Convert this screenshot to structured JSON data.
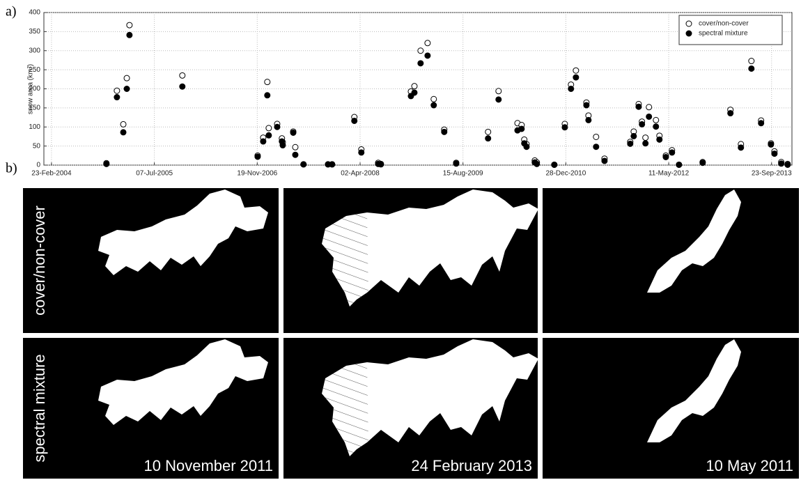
{
  "chart_data": {
    "type": "scatter",
    "ylabel": "snow area (km²)",
    "x": [
      "2004-11-16",
      "2005-01-06",
      "2005-02-06",
      "2005-02-23",
      "2005-03-08",
      "2005-11-20",
      "2006-11-21",
      "2006-12-18",
      "2007-01-07",
      "2007-01-14",
      "2007-02-24",
      "2007-03-19",
      "2007-03-23",
      "2007-05-13",
      "2007-05-23",
      "2007-07-02",
      "2007-10-29",
      "2007-11-18",
      "2008-03-05",
      "2008-04-08",
      "2008-06-29",
      "2008-07-12",
      "2008-12-05",
      "2008-12-22",
      "2009-01-21",
      "2009-02-24",
      "2009-03-26",
      "2009-05-16",
      "2009-07-13",
      "2009-12-15",
      "2010-02-04",
      "2010-05-07",
      "2010-05-27",
      "2010-06-09",
      "2010-06-20",
      "2010-07-30",
      "2010-08-09",
      "2010-11-02",
      "2010-12-23",
      "2011-01-22",
      "2011-02-15",
      "2011-04-07",
      "2011-04-17",
      "2011-05-24",
      "2011-07-04",
      "2011-11-06",
      "2011-11-23",
      "2011-12-17",
      "2012-01-02",
      "2012-01-19",
      "2012-02-05",
      "2012-03-10",
      "2012-03-27",
      "2012-04-27",
      "2012-05-27",
      "2012-06-30",
      "2012-10-23",
      "2013-03-07",
      "2013-04-27",
      "2013-06-17",
      "2013-08-03",
      "2013-09-20",
      "2013-10-07",
      "2013-11-09",
      "2013-12-10"
    ],
    "series": [
      {
        "name": "cover/non-cover",
        "color": "#000000",
        "hollow": true,
        "values": [
          5,
          195,
          107,
          228,
          367,
          235,
          25,
          72,
          218,
          97,
          108,
          70,
          60,
          88,
          47,
          2,
          2,
          2,
          126,
          41,
          6,
          3,
          193,
          207,
          300,
          320,
          173,
          93,
          6,
          87,
          194,
          110,
          105,
          67,
          55,
          12,
          7,
          1,
          108,
          211,
          248,
          164,
          130,
          74,
          17,
          61,
          88,
          160,
          114,
          72,
          152,
          118,
          77,
          25,
          39,
          1,
          8,
          145,
          55,
          273,
          117,
          57,
          36,
          8,
          3
        ]
      },
      {
        "name": "spectral mixture",
        "color": "#000000",
        "hollow": false,
        "values": [
          3,
          178,
          86,
          200,
          341,
          206,
          22,
          62,
          183,
          78,
          100,
          62,
          52,
          85,
          27,
          2,
          2,
          2,
          116,
          33,
          3,
          2,
          181,
          190,
          267,
          287,
          157,
          87,
          4,
          70,
          172,
          91,
          95,
          57,
          48,
          7,
          3,
          1,
          99,
          200,
          230,
          157,
          118,
          48,
          11,
          56,
          76,
          153,
          107,
          57,
          127,
          101,
          67,
          21,
          33,
          1,
          6,
          136,
          46,
          253,
          110,
          54,
          30,
          4,
          1
        ]
      }
    ],
    "xlim": [
      "2004-01-17",
      "2013-12-31"
    ],
    "xticks": [
      {
        "value": "2004-02-23",
        "label": "23-Feb-2004"
      },
      {
        "value": "2005-07-07",
        "label": "07-Jul-2005"
      },
      {
        "value": "2006-11-19",
        "label": "19-Nov-2006"
      },
      {
        "value": "2008-04-02",
        "label": "02-Apr-2008"
      },
      {
        "value": "2009-08-15",
        "label": "15-Aug-2009"
      },
      {
        "value": "2010-12-28",
        "label": "28-Dec-2010"
      },
      {
        "value": "2012-05-11",
        "label": "11-May-2012"
      },
      {
        "value": "2013-09-23",
        "label": "23-Sep-2013"
      }
    ],
    "ylim": [
      0,
      400
    ],
    "yticks": [
      0,
      50,
      100,
      150,
      200,
      250,
      300,
      350,
      400
    ],
    "grid": true,
    "legend": "top-right"
  },
  "figure": {
    "label_a": "a)",
    "label_b": "b)",
    "row_labels": [
      "cover/non-cover",
      "spectral mixture"
    ],
    "dates": [
      "10 November 2011",
      "24 February 2013",
      "10 May 2011"
    ]
  }
}
